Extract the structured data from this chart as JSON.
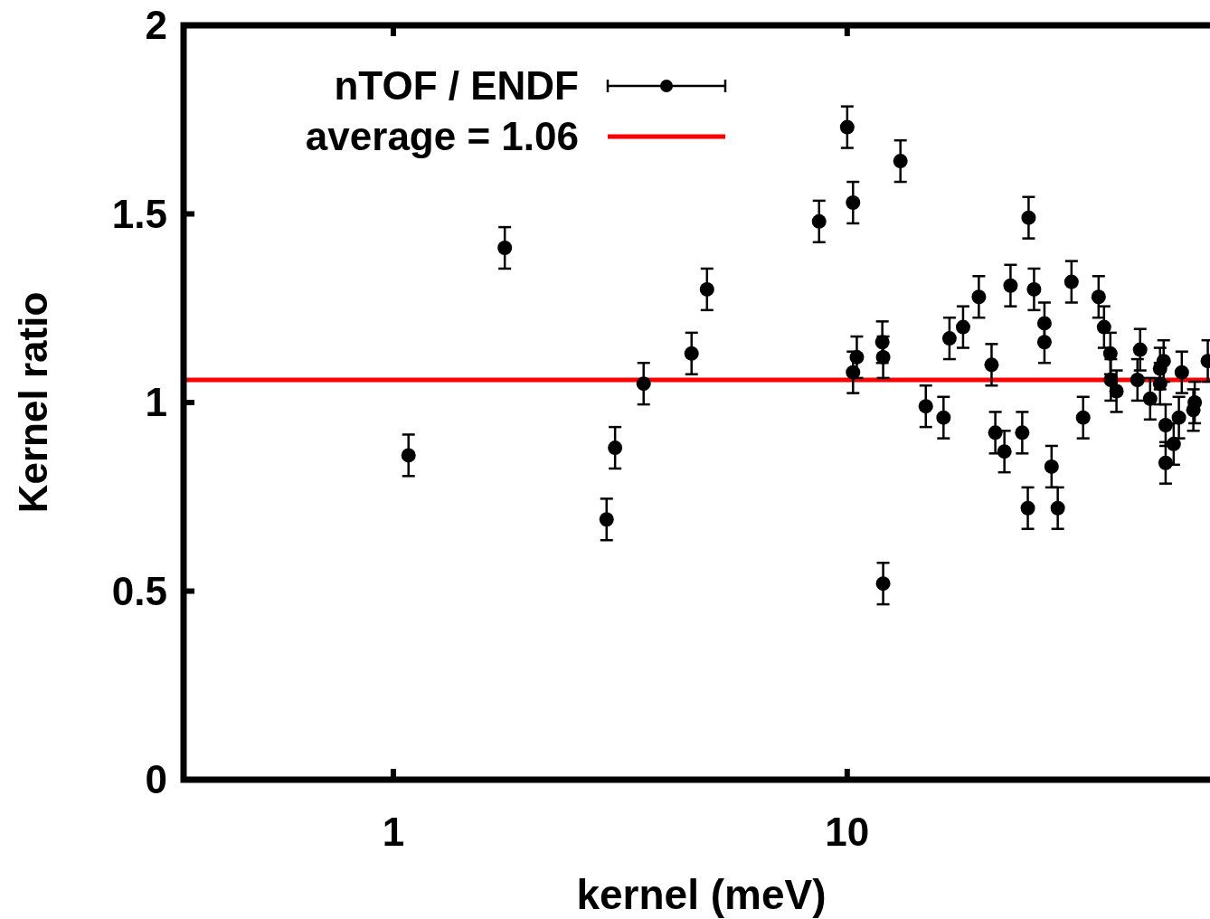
{
  "chart_data": {
    "type": "scatter",
    "xlabel": "kernel (meV)",
    "ylabel": "Kernel ratio",
    "log": "x",
    "xlim": [
      0.345,
      63
    ],
    "xticks": [
      1,
      10
    ],
    "ylim": [
      0,
      2
    ],
    "yticks": [
      0,
      0.5,
      1,
      1.5,
      2
    ],
    "grid": false,
    "legend": "top left",
    "marker": "circle",
    "series": [
      {
        "name": "nTOF / ENDF",
        "color": "#000000",
        "x": [
          1.08,
          1.76,
          2.95,
          3.08,
          3.56,
          4.54,
          4.91,
          8.67,
          10.0,
          10.3,
          10.3,
          10.5,
          11.95,
          12.0,
          12.0,
          13.1,
          14.9,
          16.3,
          16.8,
          18.0,
          19.5,
          20.8,
          21.2,
          22.2,
          22.9,
          24.3,
          25.0,
          25.1,
          25.8,
          27.2,
          27.2,
          28.2,
          29.1,
          31.2,
          33.1,
          35.8,
          36.8,
          38.0,
          38.1,
          39.2,
          43.6,
          44.2,
          46.5,
          48.9,
          49.8,
          48.9,
          50.3,
          50.3,
          52.4,
          53.8,
          54.6,
          57.9,
          58.3,
          62.3
        ],
        "values": [
          0.86,
          1.41,
          0.69,
          0.88,
          1.05,
          1.13,
          1.3,
          1.48,
          1.73,
          1.53,
          1.08,
          1.12,
          1.16,
          1.12,
          0.52,
          1.64,
          0.99,
          0.96,
          1.17,
          1.2,
          1.28,
          1.1,
          0.92,
          0.87,
          1.31,
          0.92,
          0.72,
          1.49,
          1.3,
          1.16,
          1.21,
          0.83,
          0.72,
          1.32,
          0.96,
          1.28,
          1.2,
          1.13,
          1.06,
          1.03,
          1.06,
          1.14,
          1.01,
          1.09,
          1.11,
          1.05,
          0.94,
          0.84,
          0.89,
          0.96,
          1.08,
          0.98,
          1.0,
          1.11
        ],
        "errors": [
          0.055,
          0.055,
          0.055,
          0.055,
          0.055,
          0.055,
          0.055,
          0.055,
          0.055,
          0.055,
          0.055,
          0.055,
          0.055,
          0.055,
          0.055,
          0.055,
          0.055,
          0.055,
          0.055,
          0.055,
          0.055,
          0.055,
          0.055,
          0.055,
          0.055,
          0.055,
          0.055,
          0.055,
          0.055,
          0.055,
          0.055,
          0.055,
          0.055,
          0.055,
          0.055,
          0.055,
          0.055,
          0.055,
          0.055,
          0.055,
          0.055,
          0.055,
          0.055,
          0.055,
          0.055,
          0.055,
          0.055,
          0.055,
          0.055,
          0.055,
          0.055,
          0.055,
          0.055,
          0.055
        ]
      }
    ],
    "ref_lines": [
      {
        "axis": "y",
        "value": 1.06,
        "label": "average = 1.06",
        "color": "#ff0000"
      }
    ]
  }
}
